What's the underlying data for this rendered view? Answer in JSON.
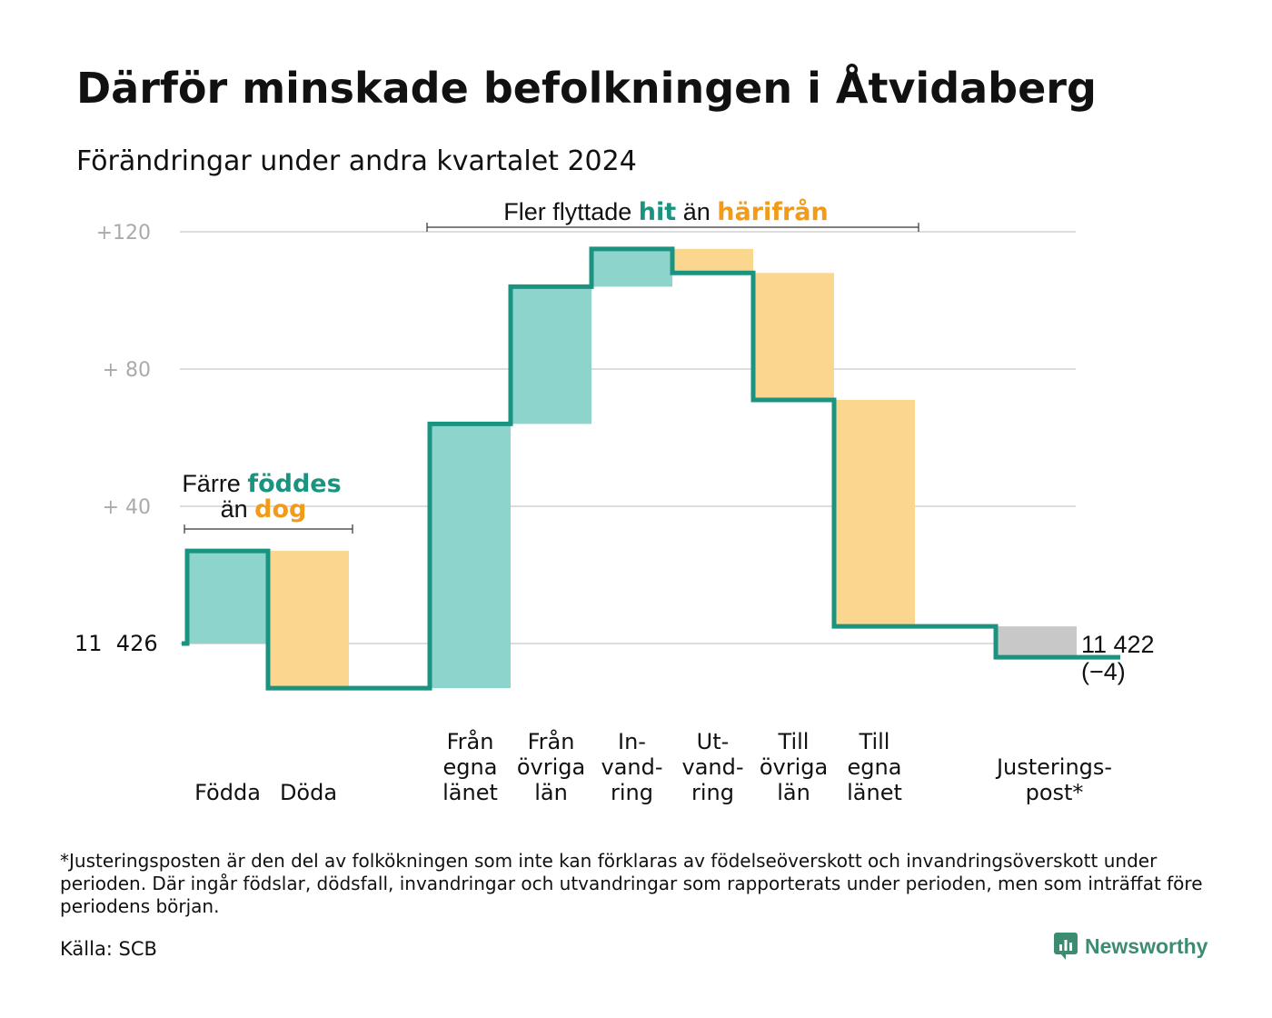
{
  "title": "Därför minskade befolkningen i Åtvidaberg",
  "subtitle": "Förändringar under andra kvartalet 2024",
  "footnote": "*Justeringsposten är den del av folkökningen som inte kan förklaras av födelseöverskott och invandringsöverskott under perioden. Där ingår födslar, dödsfall, invandringar och utvandringar som rapporterats under perioden, men som inträffat före periodens början.",
  "source": "Källa: SCB",
  "logo_text": "Newsworthy",
  "colors": {
    "positive": "#8dd5cc",
    "negative": "#fbd68f",
    "adjustment": "#c8c8c8",
    "line": "#1a9480",
    "teal_text": "#1a9480",
    "orange_text": "#f29a1a",
    "grid": "#dddddd",
    "tick": "#aaaaaa"
  },
  "chart_data": {
    "type": "waterfall",
    "start_label": "11  426",
    "end_value_label": "11 422",
    "end_change_label": "(−4)",
    "y_ticks": [
      "+120",
      "+  80",
      "+  40"
    ],
    "ylim": [
      -13,
      121
    ],
    "steps": [
      {
        "label": "Födda",
        "value": 27,
        "kind": "positive"
      },
      {
        "label": "Döda",
        "value": -40,
        "kind": "negative"
      },
      {
        "label": "Från egna länet",
        "value": 77,
        "kind": "positive"
      },
      {
        "label": "Från övriga län",
        "value": 40,
        "kind": "positive"
      },
      {
        "label": "In- vand- ring",
        "value": 11,
        "kind": "positive"
      },
      {
        "label": "Ut- vand- ring",
        "value": -7,
        "kind": "negative"
      },
      {
        "label": "Till övriga län",
        "value": -37,
        "kind": "negative"
      },
      {
        "label": "Till egna länet",
        "value": -66,
        "kind": "negative"
      },
      {
        "label": "Justerings- post*",
        "value": -9,
        "kind": "adjustment"
      }
    ],
    "annotations": [
      {
        "pre": "Färre ",
        "colored1": "föddes",
        "mid": "än ",
        "colored2": "dog"
      },
      {
        "pre": "Fler flyttade ",
        "colored1": "hit",
        "mid": " än ",
        "colored2": "härifrån"
      }
    ],
    "x_labels": [
      [
        "Födda"
      ],
      [
        "Döda"
      ],
      [
        "Från",
        "egna",
        "länet"
      ],
      [
        "Från",
        "övriga",
        "län"
      ],
      [
        "In-",
        "vand-",
        "ring"
      ],
      [
        "Ut-",
        "vand-",
        "ring"
      ],
      [
        "Till",
        "övriga",
        "län"
      ],
      [
        "Till",
        "egna",
        "länet"
      ],
      [
        "Justerings-",
        "post*"
      ]
    ]
  }
}
